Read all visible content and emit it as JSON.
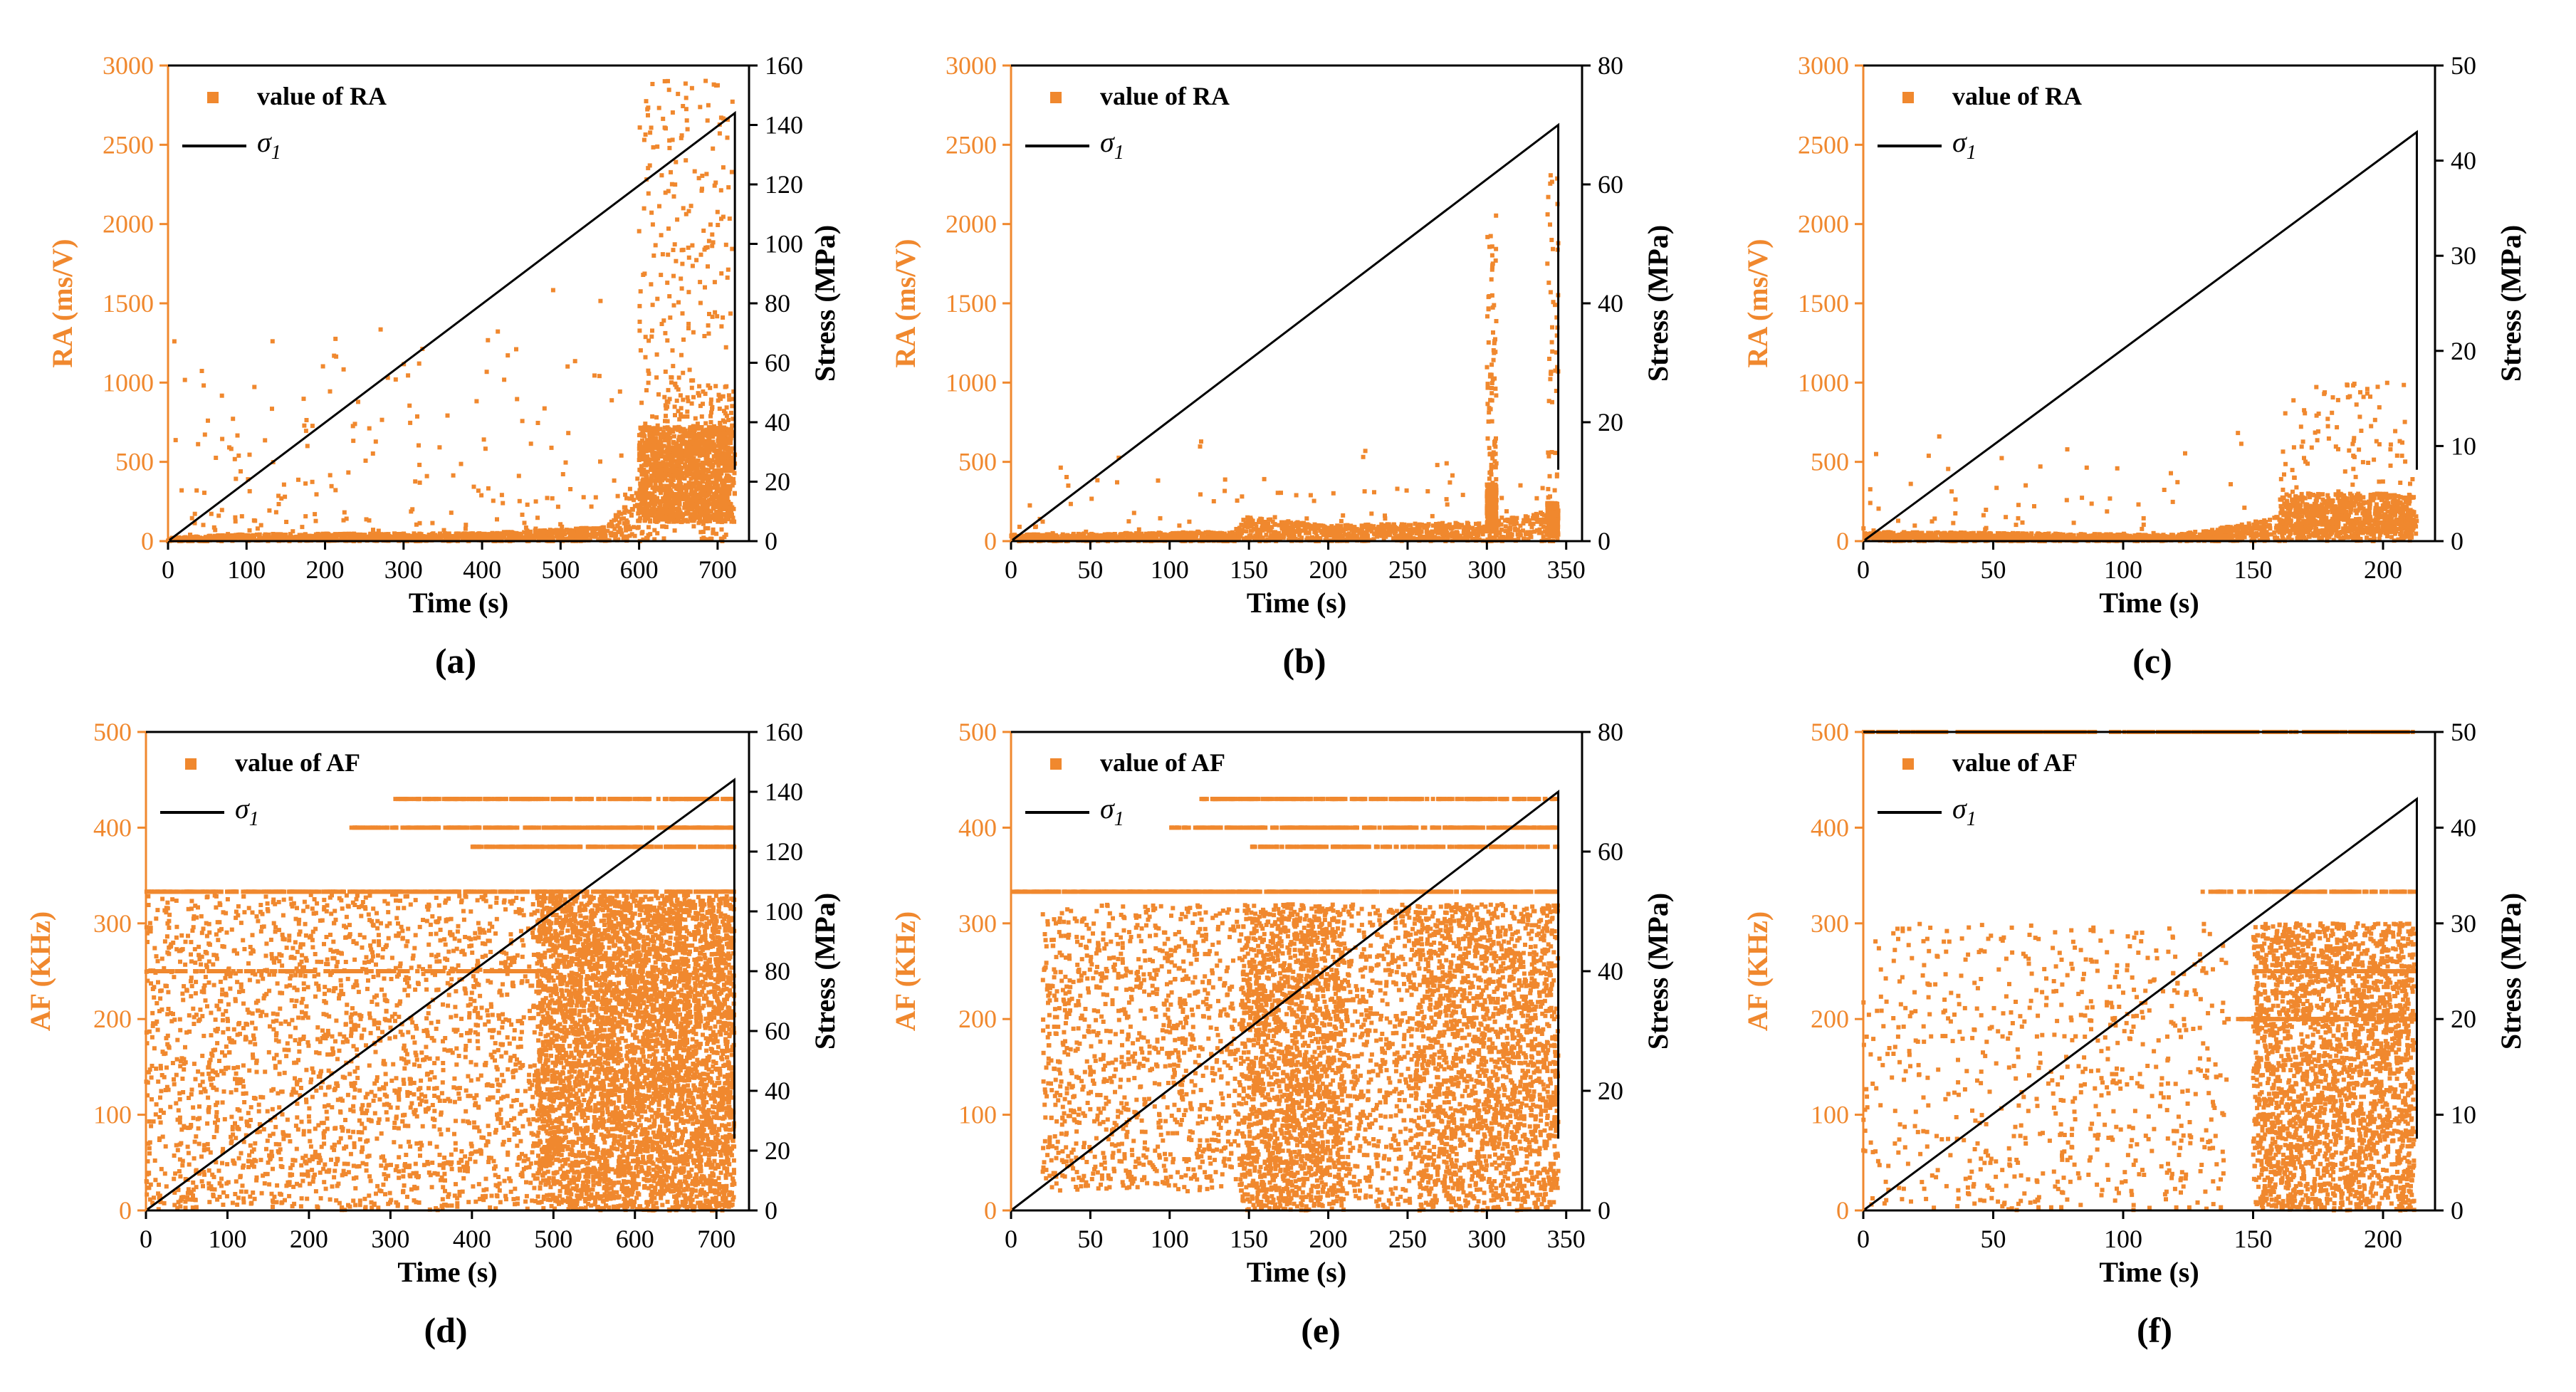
{
  "colors": {
    "scatter": "#f0882e",
    "stress_line": "#000000",
    "left_axis": "#f0882e",
    "right_axis": "#000000"
  },
  "chart_data": [
    {
      "id": "a",
      "caption": "(a)",
      "type": "scatter",
      "xlabel": "Time (s)",
      "ylabel": "RA (ms/V)",
      "y2label": "Stress (MPa)",
      "xlim": [
        0,
        740
      ],
      "ylim": [
        0,
        3000
      ],
      "y2lim": [
        0,
        160
      ],
      "xticks": [
        0,
        100,
        200,
        300,
        400,
        500,
        600,
        700
      ],
      "yticks": [
        0,
        500,
        1000,
        1500,
        2000,
        2500,
        3000
      ],
      "y2ticks": [
        0,
        20,
        40,
        60,
        80,
        100,
        120,
        140,
        160
      ],
      "legend_scatter": "value of RA",
      "legend_line_sym": "σ",
      "legend_line_sub": "1",
      "stress_line": {
        "t_end": 722,
        "s_end": 144
      },
      "scatter": {
        "seed": 11,
        "baseline": [
          [
            0,
            20
          ],
          [
            100,
            45
          ],
          [
            400,
            50
          ],
          [
            560,
            90
          ],
          [
            600,
            450
          ],
          [
            640,
            1050
          ],
          [
            722,
            950
          ]
        ],
        "sparse": 260,
        "sparse_ymax": 1850,
        "cluster": [
          [
            600,
            720,
            600,
            2800,
            1600
          ]
        ]
      }
    },
    {
      "id": "b",
      "caption": "(b)",
      "type": "scatter",
      "xlabel": "Time (s)",
      "ylabel": "RA (ms/V)",
      "y2label": "Stress (MPa)",
      "xlim": [
        0,
        360
      ],
      "ylim": [
        0,
        3000
      ],
      "y2lim": [
        0,
        80
      ],
      "xticks": [
        0,
        50,
        100,
        150,
        200,
        250,
        300,
        350
      ],
      "yticks": [
        0,
        500,
        1000,
        1500,
        2000,
        2500,
        3000
      ],
      "y2ticks": [
        0,
        20,
        40,
        60,
        80
      ],
      "legend_scatter": "value of RA",
      "legend_line_sym": "σ",
      "legend_line_sub": "1",
      "stress_line": {
        "t_end": 345,
        "s_end": 70
      },
      "scatter": {
        "seed": 23,
        "baseline": [
          [
            0,
            40
          ],
          [
            140,
            60
          ],
          [
            150,
            150
          ],
          [
            200,
            100
          ],
          [
            300,
            120
          ],
          [
            345,
            200
          ]
        ],
        "sparse": 120,
        "sparse_ymax": 900,
        "cluster": [
          [
            300,
            306,
            300,
            2000,
            500
          ],
          [
            338,
            345,
            200,
            2300,
            400
          ]
        ]
      }
    },
    {
      "id": "c",
      "caption": "(c)",
      "type": "scatter",
      "xlabel": "Time (s)",
      "ylabel": "RA (ms/V)",
      "y2label": "Stress (MPa)",
      "xlim": [
        0,
        220
      ],
      "ylim": [
        0,
        3000
      ],
      "y2lim": [
        0,
        50
      ],
      "xticks": [
        0,
        50,
        100,
        150,
        200
      ],
      "yticks": [
        0,
        500,
        1000,
        1500,
        2000,
        2500,
        3000
      ],
      "y2ticks": [
        0,
        10,
        20,
        30,
        40,
        50
      ],
      "legend_scatter": "value of RA",
      "legend_line_sym": "σ",
      "legend_line_sub": "1",
      "stress_line": {
        "t_end": 213,
        "s_end": 43
      },
      "scatter": {
        "seed": 37,
        "baseline": [
          [
            0,
            60
          ],
          [
            120,
            40
          ],
          [
            150,
            120
          ],
          [
            180,
            250
          ],
          [
            212,
            200
          ]
        ],
        "sparse": 110,
        "sparse_ymax": 900,
        "cluster": [
          [
            160,
            212,
            250,
            950,
            700
          ]
        ]
      }
    },
    {
      "id": "d",
      "caption": "(d)",
      "type": "scatter",
      "xlabel": "Time (s)",
      "ylabel": "AF (KHz)",
      "y2label": "Stress (MPa)",
      "xlim": [
        0,
        740
      ],
      "ylim": [
        0,
        500
      ],
      "y2lim": [
        0,
        160
      ],
      "xticks": [
        0,
        100,
        200,
        300,
        400,
        500,
        600,
        700
      ],
      "yticks": [
        0,
        100,
        200,
        300,
        400,
        500
      ],
      "y2ticks": [
        0,
        20,
        40,
        60,
        80,
        100,
        120,
        140,
        160
      ],
      "legend_scatter": "value of AF",
      "legend_line_sym": "σ",
      "legend_line_sub": "1",
      "stress_line": {
        "t_end": 722,
        "s_end": 144
      },
      "scatter": {
        "seed": 47,
        "field": [
          [
            0,
            480,
            2200,
            0,
            330
          ],
          [
            480,
            722,
            5200,
            0,
            330
          ]
        ],
        "bands": [
          [
            333,
            0,
            722,
            0.5
          ],
          [
            400,
            250,
            722,
            0.35
          ],
          [
            430,
            300,
            722,
            0.3
          ],
          [
            380,
            400,
            722,
            0.4
          ],
          [
            250,
            0,
            500,
            0.25
          ]
        ]
      }
    },
    {
      "id": "e",
      "caption": "(e)",
      "type": "scatter",
      "xlabel": "Time (s)",
      "ylabel": "AF (KHz)",
      "y2label": "Stress (MPa)",
      "xlim": [
        0,
        360
      ],
      "ylim": [
        0,
        500
      ],
      "y2lim": [
        0,
        80
      ],
      "xticks": [
        0,
        50,
        100,
        150,
        200,
        250,
        300,
        350
      ],
      "yticks": [
        0,
        100,
        200,
        300,
        400,
        500
      ],
      "y2ticks": [
        0,
        20,
        40,
        60,
        80
      ],
      "legend_scatter": "value of AF",
      "legend_line_sym": "σ",
      "legend_line_sub": "1",
      "stress_line": {
        "t_end": 345,
        "s_end": 70
      },
      "scatter": {
        "seed": 59,
        "field": [
          [
            20,
            145,
            1100,
            20,
            320
          ],
          [
            145,
            210,
            1900,
            0,
            320
          ],
          [
            210,
            255,
            500,
            0,
            320
          ],
          [
            255,
            345,
            2100,
            0,
            320
          ]
        ],
        "bands": [
          [
            333,
            0,
            345,
            0.5
          ],
          [
            400,
            100,
            345,
            0.35
          ],
          [
            430,
            120,
            345,
            0.3
          ],
          [
            380,
            150,
            345,
            0.3
          ]
        ]
      }
    },
    {
      "id": "f",
      "caption": "(f)",
      "type": "scatter",
      "xlabel": "Time (s)",
      "ylabel": "AF (KHz)",
      "y2label": "Stress (MPa)",
      "xlim": [
        0,
        220
      ],
      "ylim": [
        0,
        500
      ],
      "y2lim": [
        0,
        50
      ],
      "xticks": [
        0,
        50,
        100,
        150,
        200
      ],
      "yticks": [
        0,
        100,
        200,
        300,
        400,
        500
      ],
      "y2ticks": [
        0,
        10,
        20,
        30,
        40,
        50
      ],
      "legend_scatter": "value of AF",
      "legend_line_sym": "σ",
      "legend_line_sub": "1",
      "stress_line": {
        "t_end": 213,
        "s_end": 43
      },
      "scatter": {
        "seed": 71,
        "field": [
          [
            0,
            140,
            700,
            0,
            300
          ],
          [
            150,
            212,
            2600,
            0,
            300
          ]
        ],
        "bands": [
          [
            333,
            130,
            212,
            0.3
          ],
          [
            250,
            150,
            212,
            0.3
          ],
          [
            200,
            140,
            212,
            0.3
          ],
          [
            500,
            0,
            220,
            0.3
          ]
        ]
      }
    }
  ]
}
